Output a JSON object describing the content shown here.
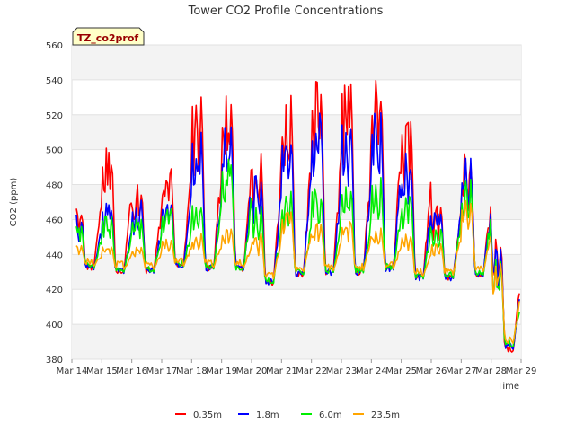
{
  "chart_data": {
    "type": "line",
    "title": "Tower CO2 Profile Concentrations",
    "xlabel": "Time",
    "ylabel": "CO2 (ppm)",
    "badge": "TZ_co2prof",
    "ylim": [
      380,
      560
    ],
    "yticks": [
      380,
      400,
      420,
      440,
      460,
      480,
      500,
      520,
      540,
      560
    ],
    "xlim": [
      "2024-03-14",
      "2024-03-29"
    ],
    "xticks": [
      "Mar 14",
      "Mar 15",
      "Mar 16",
      "Mar 17",
      "Mar 18",
      "Mar 19",
      "Mar 20",
      "Mar 21",
      "Mar 22",
      "Mar 23",
      "Mar 24",
      "Mar 25",
      "Mar 26",
      "Mar 27",
      "Mar 28",
      "Mar 29"
    ],
    "grid": true,
    "legend_position": "bottom",
    "x": [
      "2024-03-14",
      "2024-03-15",
      "2024-03-16",
      "2024-03-17",
      "2024-03-18",
      "2024-03-19",
      "2024-03-20",
      "2024-03-21",
      "2024-03-22",
      "2024-03-23",
      "2024-03-24",
      "2024-03-25",
      "2024-03-26",
      "2024-03-27",
      "2024-03-28"
    ],
    "series": [
      {
        "name": "0.35m",
        "color": "#ff0000",
        "night_peak": [
          467,
          501,
          481,
          489,
          533,
          533,
          498,
          531,
          539,
          538,
          541,
          516,
          469,
          499,
          451
        ],
        "day_low": [
          430,
          428,
          428,
          431,
          429,
          429,
          421,
          426,
          427,
          427,
          429,
          424,
          424,
          426,
          383
        ]
      },
      {
        "name": "1.8m",
        "color": "#0000ff",
        "night_peak": [
          463,
          470,
          471,
          474,
          510,
          513,
          485,
          513,
          522,
          522,
          521,
          498,
          465,
          495,
          444
        ],
        "day_low": [
          430,
          428,
          428,
          431,
          429,
          429,
          421,
          426,
          427,
          427,
          429,
          424,
          424,
          426,
          384
        ]
      },
      {
        "name": "6.0m",
        "color": "#00ee00",
        "night_peak": [
          456,
          462,
          460,
          466,
          470,
          495,
          471,
          476,
          478,
          481,
          484,
          474,
          458,
          483,
          437
        ],
        "day_low": [
          431,
          429,
          429,
          432,
          430,
          430,
          422,
          427,
          428,
          428,
          430,
          425,
          425,
          427,
          386
        ]
      },
      {
        "name": "23.5m",
        "color": "#ffa500",
        "night_peak": [
          445,
          445,
          444,
          449,
          452,
          455,
          452,
          465,
          458,
          460,
          455,
          453,
          447,
          472,
          438
        ],
        "day_low": [
          433,
          431,
          431,
          433,
          432,
          432,
          425,
          429,
          430,
          430,
          431,
          427,
          427,
          429,
          388
        ]
      }
    ]
  }
}
